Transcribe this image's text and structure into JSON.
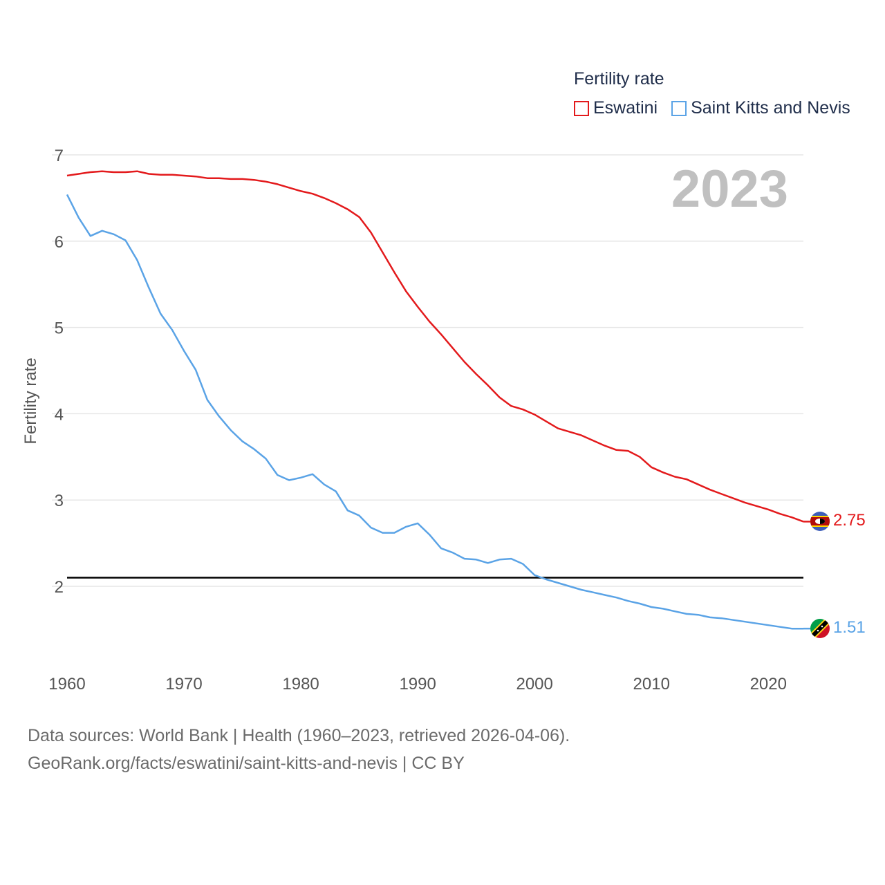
{
  "legend": {
    "title": "Fertility rate",
    "items": [
      {
        "name": "Eswatini",
        "color": "#e31a1c"
      },
      {
        "name": "Saint Kitts and Nevis",
        "color": "#5aa3e6"
      }
    ]
  },
  "year_label": "2023",
  "source": {
    "line1": "Data sources: World Bank | Health (1960–2023, retrieved 2026-04-06).",
    "line2": "GeoRank.org/facts/eswatini/saint-kitts-and-nevis | CC BY"
  },
  "end_labels": {
    "eswatini": "2.75",
    "skn": "1.51"
  },
  "chart_data": {
    "type": "line",
    "title": "",
    "xlabel": "",
    "ylabel": "Fertility rate",
    "xlim": [
      1960,
      2023
    ],
    "ylim": [
      1.2,
      7
    ],
    "yticks": [
      2,
      3,
      4,
      5,
      6,
      7
    ],
    "xticks": [
      1960,
      1970,
      1980,
      1990,
      2000,
      2010,
      2020
    ],
    "reference_line": 2.1,
    "x": [
      1960,
      1961,
      1962,
      1963,
      1964,
      1965,
      1966,
      1967,
      1968,
      1969,
      1970,
      1971,
      1972,
      1973,
      1974,
      1975,
      1976,
      1977,
      1978,
      1979,
      1980,
      1981,
      1982,
      1983,
      1984,
      1985,
      1986,
      1987,
      1988,
      1989,
      1990,
      1991,
      1992,
      1993,
      1994,
      1995,
      1996,
      1997,
      1998,
      1999,
      2000,
      2001,
      2002,
      2003,
      2004,
      2005,
      2006,
      2007,
      2008,
      2009,
      2010,
      2011,
      2012,
      2013,
      2014,
      2015,
      2016,
      2017,
      2018,
      2019,
      2020,
      2021,
      2022,
      2023
    ],
    "series": [
      {
        "name": "Eswatini",
        "color": "#e31a1c",
        "values": [
          6.76,
          6.78,
          6.8,
          6.81,
          6.8,
          6.8,
          6.81,
          6.78,
          6.77,
          6.77,
          6.76,
          6.75,
          6.73,
          6.73,
          6.72,
          6.72,
          6.71,
          6.69,
          6.66,
          6.62,
          6.58,
          6.55,
          6.5,
          6.44,
          6.37,
          6.28,
          6.1,
          5.87,
          5.64,
          5.42,
          5.24,
          5.07,
          4.92,
          4.76,
          4.6,
          4.46,
          4.33,
          4.19,
          4.09,
          4.05,
          3.99,
          3.91,
          3.83,
          3.79,
          3.75,
          3.69,
          3.63,
          3.58,
          3.57,
          3.5,
          3.38,
          3.32,
          3.27,
          3.24,
          3.18,
          3.12,
          3.07,
          3.02,
          2.97,
          2.93,
          2.89,
          2.84,
          2.8,
          2.75
        ]
      },
      {
        "name": "Saint Kitts and Nevis",
        "color": "#5aa3e6",
        "values": [
          6.54,
          6.27,
          6.06,
          6.12,
          6.08,
          6.01,
          5.78,
          5.46,
          5.16,
          4.97,
          4.73,
          4.51,
          4.16,
          3.97,
          3.81,
          3.68,
          3.59,
          3.48,
          3.29,
          3.23,
          3.26,
          3.3,
          3.18,
          3.1,
          2.88,
          2.82,
          2.68,
          2.62,
          2.62,
          2.69,
          2.73,
          2.6,
          2.44,
          2.39,
          2.32,
          2.31,
          2.27,
          2.31,
          2.32,
          2.26,
          2.13,
          2.08,
          2.04,
          2.0,
          1.96,
          1.93,
          1.9,
          1.87,
          1.83,
          1.8,
          1.76,
          1.74,
          1.71,
          1.68,
          1.67,
          1.64,
          1.63,
          1.61,
          1.59,
          1.57,
          1.55,
          1.53,
          1.51,
          1.51
        ]
      }
    ]
  }
}
